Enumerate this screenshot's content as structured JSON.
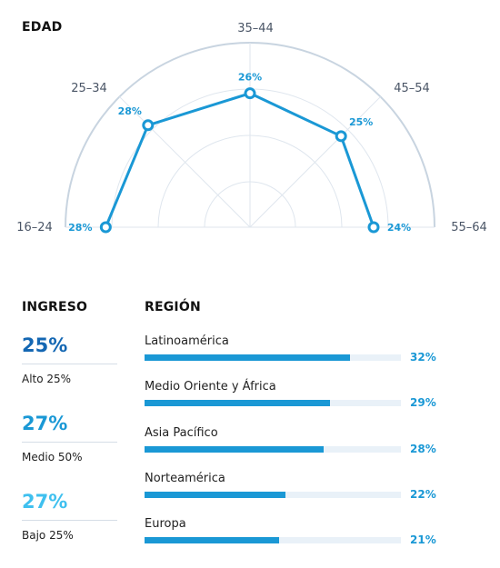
{
  "age": {
    "title": "EDAD",
    "chart_data": {
      "type": "radar",
      "categories": [
        "16–24",
        "25–34",
        "35–44",
        "45–54",
        "55–64"
      ],
      "values": [
        28,
        28,
        26,
        25,
        24
      ],
      "value_labels": [
        "28%",
        "28%",
        "26%",
        "25%",
        "24%"
      ],
      "unit": "%",
      "rmax": 30
    }
  },
  "income": {
    "title": "INGRESO",
    "items": [
      {
        "value": "25%",
        "label": "Alto 25%",
        "color": "#1467b3"
      },
      {
        "value": "27%",
        "label": "Medio 50%",
        "color": "#1a98d5"
      },
      {
        "value": "27%",
        "label": "Bajo 25%",
        "color": "#3fc0ef"
      }
    ]
  },
  "region": {
    "title": "REGIÓN",
    "chart_data": {
      "type": "bar",
      "orientation": "horizontal",
      "categories": [
        "Latinoamérica",
        "Medio Oriente y África",
        "Asia Pacífico",
        "Norteamérica",
        "Europa"
      ],
      "values": [
        32,
        29,
        28,
        22,
        21
      ],
      "value_labels": [
        "32%",
        "29%",
        "28%",
        "22%",
        "21%"
      ],
      "xlim": [
        0,
        40
      ]
    }
  }
}
